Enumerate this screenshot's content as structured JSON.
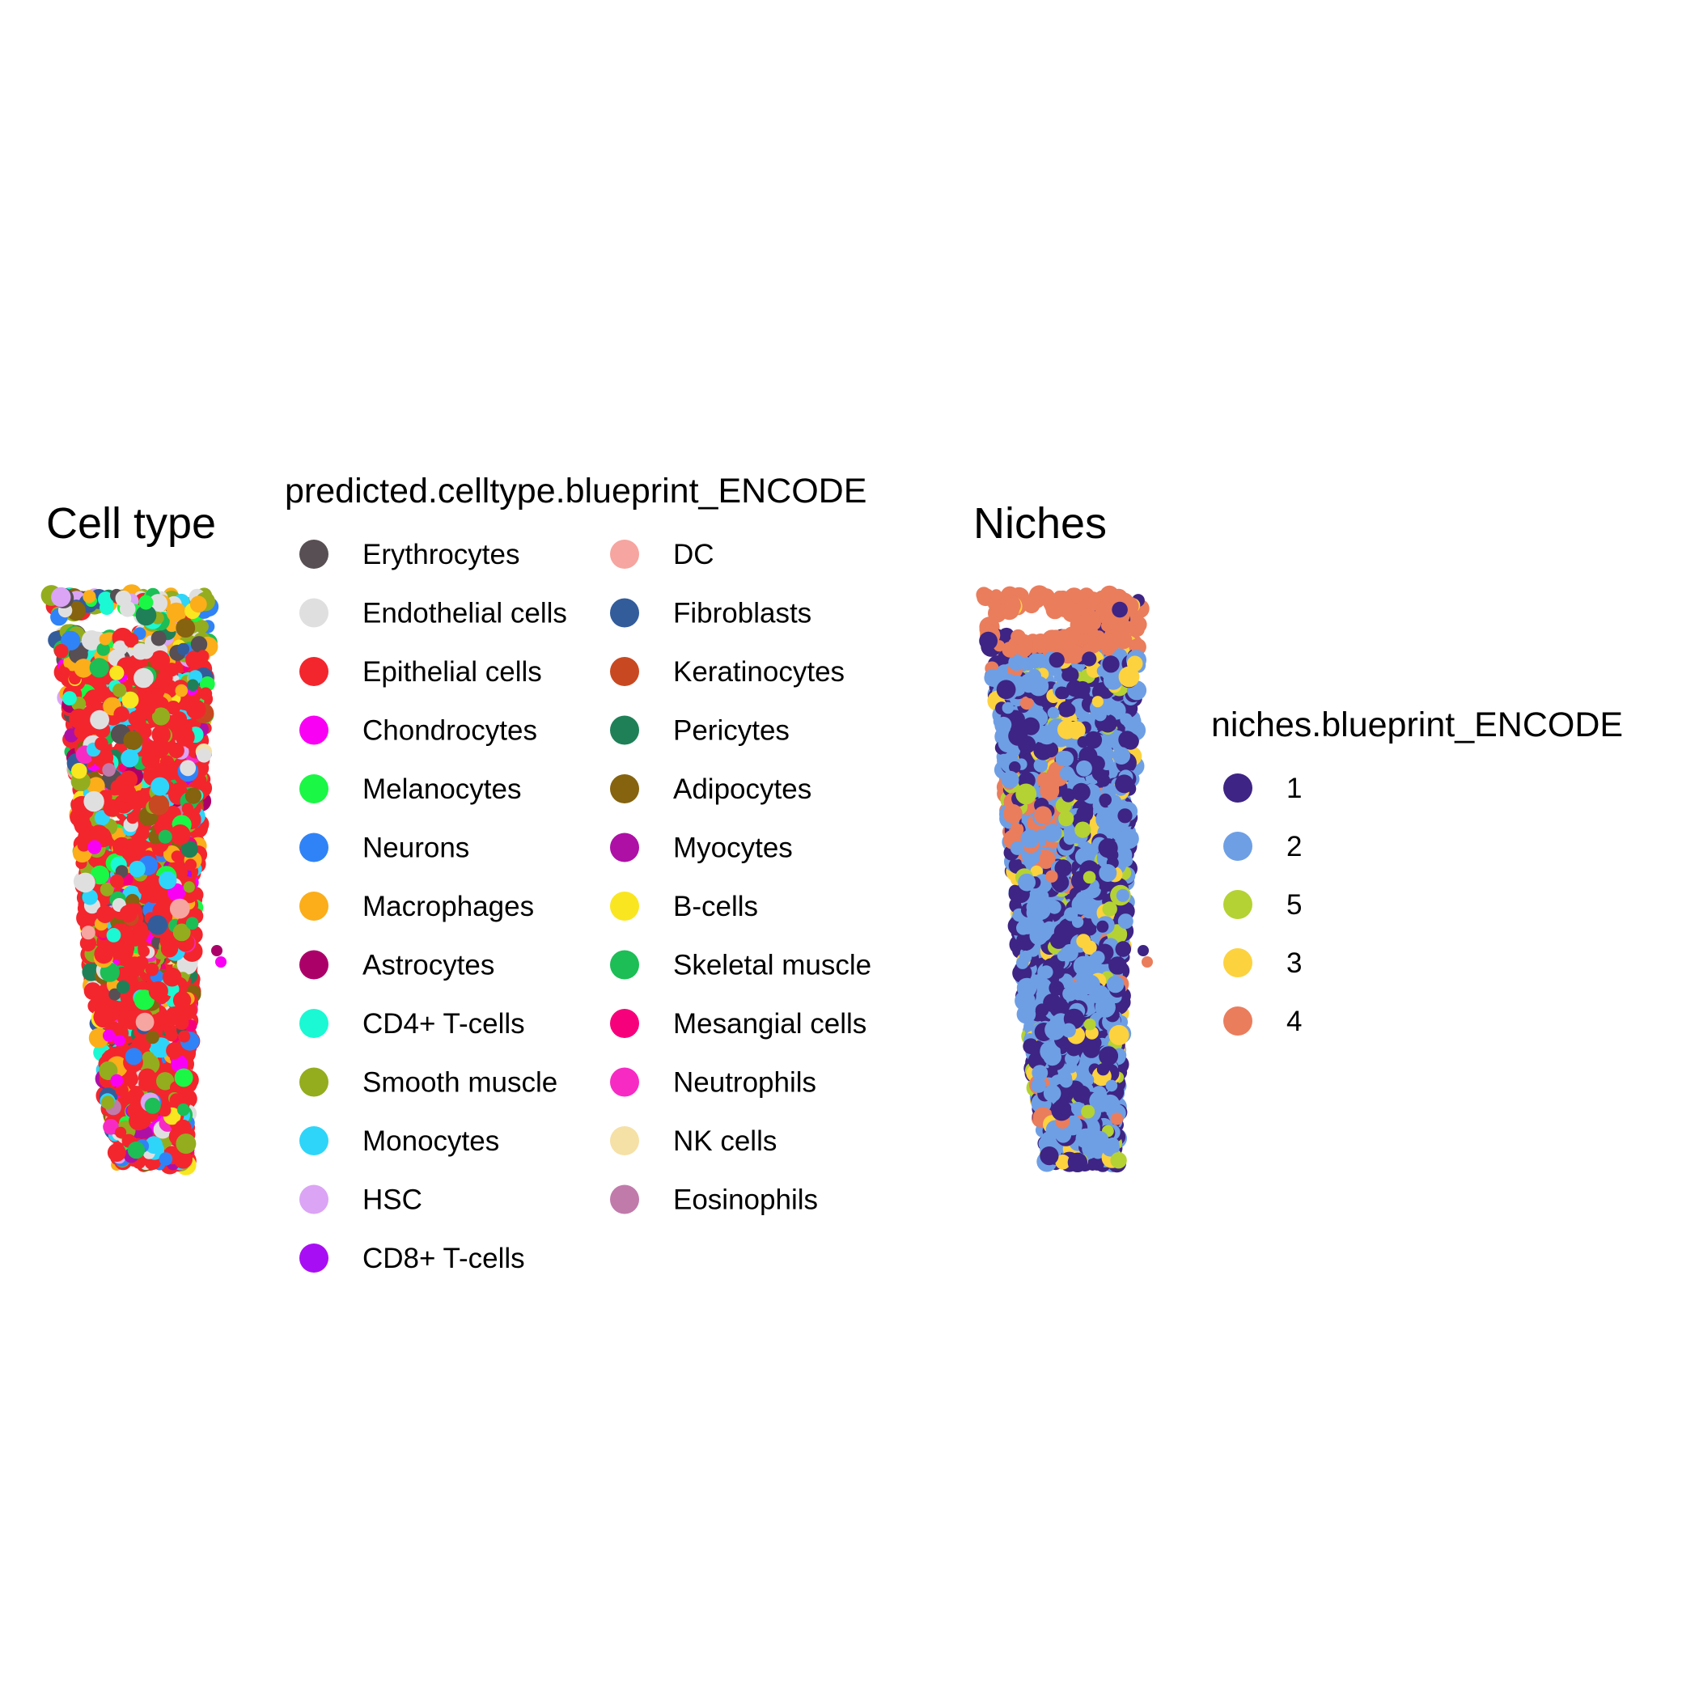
{
  "panels": [
    {
      "title": "Cell type",
      "legend_title": "predicted.celltype.blueprint_ENCODE",
      "legend_columns": [
        [
          "Erythrocytes",
          "Endothelial cells",
          "Epithelial cells",
          "Chondrocytes",
          "Melanocytes",
          "Neurons",
          "Macrophages",
          "Astrocytes",
          "CD4+ T-cells",
          "Smooth muscle",
          "Monocytes",
          "HSC",
          "CD8+ T-cells"
        ],
        [
          "DC",
          "Fibroblasts",
          "Keratinocytes",
          "Pericytes",
          "Adipocytes",
          "Myocytes",
          "B-cells",
          "Skeletal muscle",
          "Mesangial cells",
          "Neutrophils",
          "NK cells",
          "Eosinophils"
        ]
      ]
    },
    {
      "title": "Niches",
      "legend_title": "niches.blueprint_ENCODE",
      "legend_columns": [
        [
          "1",
          "2",
          "5",
          "3",
          "4"
        ]
      ]
    }
  ],
  "chart_data": [
    {
      "type": "scatter",
      "title": "Cell type",
      "legend_title": "predicted.celltype.blueprint_ENCODE",
      "legend_placement": "right",
      "grid": false,
      "axes": "hidden",
      "categories": [
        {
          "name": "Erythrocytes",
          "color": "#574F53"
        },
        {
          "name": "Endothelial cells",
          "color": "#E0DFE0"
        },
        {
          "name": "Epithelial cells",
          "color": "#F3262D"
        },
        {
          "name": "Chondrocytes",
          "color": "#F900F5"
        },
        {
          "name": "Melanocytes",
          "color": "#1AF745"
        },
        {
          "name": "Neurons",
          "color": "#3083F6"
        },
        {
          "name": "Macrophages",
          "color": "#FBAE1A"
        },
        {
          "name": "Astrocytes",
          "color": "#AC0069"
        },
        {
          "name": "CD4+ T-cells",
          "color": "#1AF9D3"
        },
        {
          "name": "Smooth muscle",
          "color": "#93AD1E"
        },
        {
          "name": "Monocytes",
          "color": "#2ED5F9"
        },
        {
          "name": "HSC",
          "color": "#DBA4F5"
        },
        {
          "name": "CD8+ T-cells",
          "color": "#A80EF4"
        },
        {
          "name": "DC",
          "color": "#F6A5A0"
        },
        {
          "name": "Fibroblasts",
          "color": "#335C9B"
        },
        {
          "name": "Keratinocytes",
          "color": "#C84921"
        },
        {
          "name": "Pericytes",
          "color": "#1F8057"
        },
        {
          "name": "Adipocytes",
          "color": "#85630F"
        },
        {
          "name": "Myocytes",
          "color": "#AE10A6"
        },
        {
          "name": "B-cells",
          "color": "#F9E620"
        },
        {
          "name": "Skeletal muscle",
          "color": "#1CBE55"
        },
        {
          "name": "Mesangial cells",
          "color": "#F7007B"
        },
        {
          "name": "Neutrophils",
          "color": "#F72BC4"
        },
        {
          "name": "NK cells",
          "color": "#F5E0A6"
        },
        {
          "name": "Eosinophils",
          "color": "#C07BAB"
        }
      ]
    },
    {
      "type": "scatter",
      "title": "Niches",
      "legend_title": "niches.blueprint_ENCODE",
      "legend_placement": "right",
      "grid": false,
      "axes": "hidden",
      "categories": [
        {
          "name": "1",
          "color": "#3E2484"
        },
        {
          "name": "2",
          "color": "#6E9FE5"
        },
        {
          "name": "5",
          "color": "#B4D233"
        },
        {
          "name": "3",
          "color": "#FCD23F"
        },
        {
          "name": "4",
          "color": "#EA7D5C"
        }
      ]
    }
  ]
}
